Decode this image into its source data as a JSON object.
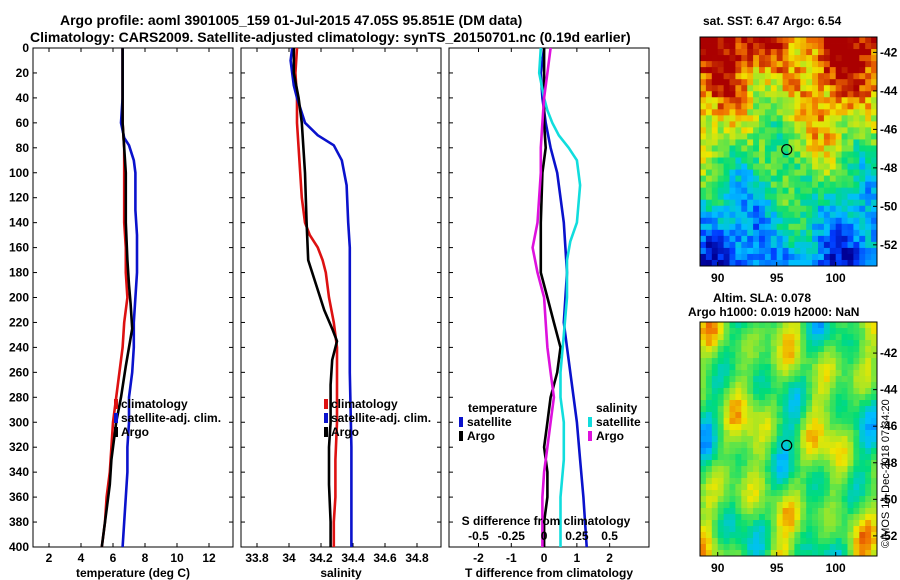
{
  "title": {
    "line1": "Argo profile: aoml 3901005_159 01-Jul-2015 47.05S 95.851E (DM data)",
    "line2": "Climatology: CARS2009. Satellite-adjusted climatology: synTS_20150701.nc (0.19d earlier)"
  },
  "copyright": "©IMOS 14-Dec-2018 07:34:20",
  "colors": {
    "climatology": "#dd1111",
    "satellite": "#0a12cc",
    "argo": "#000000",
    "s_satellite": "#11dddd",
    "s_argo": "#dd11dd"
  },
  "chart_data": [
    {
      "type": "line",
      "name": "temperature",
      "xlabel": "temperature (deg C)",
      "ylabel": "",
      "xlim": [
        1,
        13.5
      ],
      "ylim": [
        400,
        0
      ],
      "xticks": [
        "2",
        "4",
        "6",
        "8",
        "10",
        "12"
      ],
      "xtick_values": [
        2,
        4,
        6,
        8,
        10,
        12
      ],
      "yticks": [
        "0",
        "20",
        "40",
        "60",
        "80",
        "100",
        "120",
        "140",
        "160",
        "180",
        "200",
        "220",
        "240",
        "260",
        "280",
        "300",
        "320",
        "340",
        "360",
        "380",
        "400"
      ],
      "legend": [
        "climatology",
        "satellite-adj. clim.",
        "Argo"
      ],
      "series": [
        {
          "name": "climatology",
          "color": "#dd1111",
          "points": [
            [
              6.6,
              0
            ],
            [
              6.6,
              40
            ],
            [
              6.6,
              60
            ],
            [
              6.7,
              80
            ],
            [
              6.7,
              100
            ],
            [
              6.7,
              140
            ],
            [
              6.8,
              160
            ],
            [
              6.8,
              180
            ],
            [
              6.9,
              200
            ],
            [
              6.7,
              220
            ],
            [
              6.6,
              240
            ],
            [
              6.4,
              260
            ],
            [
              6.2,
              280
            ],
            [
              6.0,
              300
            ],
            [
              5.9,
              320
            ],
            [
              5.8,
              340
            ],
            [
              5.6,
              360
            ],
            [
              5.5,
              380
            ],
            [
              5.3,
              400
            ]
          ]
        },
        {
          "name": "satellite-adj. clim.",
          "color": "#0a12cc",
          "points": [
            [
              6.6,
              0
            ],
            [
              6.6,
              40
            ],
            [
              6.5,
              60
            ],
            [
              6.7,
              72
            ],
            [
              7.0,
              78
            ],
            [
              7.3,
              90
            ],
            [
              7.4,
              100
            ],
            [
              7.4,
              130
            ],
            [
              7.5,
              150
            ],
            [
              7.5,
              180
            ],
            [
              7.4,
              200
            ],
            [
              7.3,
              220
            ],
            [
              7.3,
              240
            ],
            [
              7.2,
              260
            ],
            [
              7.0,
              280
            ],
            [
              7.0,
              300
            ],
            [
              6.9,
              320
            ],
            [
              6.9,
              340
            ],
            [
              6.8,
              360
            ],
            [
              6.7,
              380
            ],
            [
              6.6,
              400
            ]
          ]
        },
        {
          "name": "Argo",
          "color": "#000000",
          "points": [
            [
              6.6,
              0
            ],
            [
              6.6,
              40
            ],
            [
              6.6,
              60
            ],
            [
              6.7,
              80
            ],
            [
              6.8,
              100
            ],
            [
              6.8,
              140
            ],
            [
              6.9,
              170
            ],
            [
              7.0,
              190
            ],
            [
              7.1,
              205
            ],
            [
              7.2,
              225
            ],
            [
              7.0,
              240
            ],
            [
              6.8,
              255
            ],
            [
              6.5,
              280
            ],
            [
              6.2,
              300
            ],
            [
              5.9,
              330
            ],
            [
              5.8,
              350
            ],
            [
              5.6,
              370
            ],
            [
              5.4,
              390
            ],
            [
              5.3,
              400
            ]
          ]
        }
      ]
    },
    {
      "type": "line",
      "name": "salinity",
      "xlabel": "salinity",
      "ylabel": "",
      "xlim": [
        33.7,
        34.95
      ],
      "ylim": [
        400,
        0
      ],
      "xticks": [
        "33.8",
        "34",
        "34.2",
        "34.4",
        "34.6",
        "34.8"
      ],
      "xtick_values": [
        33.8,
        34.0,
        34.2,
        34.4,
        34.6,
        34.8
      ],
      "legend": [
        "climatology",
        "satellite-adj. clim.",
        "Argo"
      ],
      "series": [
        {
          "name": "climatology",
          "color": "#dd1111",
          "points": [
            [
              34.05,
              0
            ],
            [
              34.04,
              20
            ],
            [
              34.05,
              40
            ],
            [
              34.05,
              60
            ],
            [
              34.06,
              80
            ],
            [
              34.07,
              100
            ],
            [
              34.08,
              120
            ],
            [
              34.1,
              140
            ],
            [
              34.13,
              150
            ],
            [
              34.18,
              160
            ],
            [
              34.21,
              170
            ],
            [
              34.23,
              180
            ],
            [
              34.25,
              200
            ],
            [
              34.28,
              220
            ],
            [
              34.3,
              240
            ],
            [
              34.3,
              260
            ],
            [
              34.3,
              280
            ],
            [
              34.3,
              300
            ],
            [
              34.29,
              330
            ],
            [
              34.29,
              360
            ],
            [
              34.28,
              380
            ],
            [
              34.28,
              400
            ]
          ]
        },
        {
          "name": "satellite-adj. clim.",
          "color": "#0a12cc",
          "points": [
            [
              34.02,
              0
            ],
            [
              34.01,
              10
            ],
            [
              34.02,
              20
            ],
            [
              34.03,
              30
            ],
            [
              34.05,
              40
            ],
            [
              34.1,
              60
            ],
            [
              34.18,
              70
            ],
            [
              34.28,
              78
            ],
            [
              34.33,
              90
            ],
            [
              34.36,
              110
            ],
            [
              34.37,
              140
            ],
            [
              34.38,
              160
            ],
            [
              34.38,
              200
            ],
            [
              34.38,
              260
            ],
            [
              34.39,
              320
            ],
            [
              34.39,
              400
            ]
          ]
        },
        {
          "name": "Argo",
          "color": "#000000",
          "points": [
            [
              34.03,
              0
            ],
            [
              34.03,
              20
            ],
            [
              34.06,
              40
            ],
            [
              34.08,
              60
            ],
            [
              34.1,
              100
            ],
            [
              34.11,
              140
            ],
            [
              34.12,
              170
            ],
            [
              34.17,
              190
            ],
            [
              34.22,
              210
            ],
            [
              34.27,
              225
            ],
            [
              34.3,
              235
            ],
            [
              34.27,
              250
            ],
            [
              34.26,
              270
            ],
            [
              34.26,
              300
            ],
            [
              34.25,
              320
            ],
            [
              34.25,
              350
            ],
            [
              34.26,
              380
            ],
            [
              34.26,
              400
            ]
          ]
        }
      ]
    },
    {
      "type": "line",
      "name": "differences",
      "xlabel": "T difference from climatology",
      "xlabel_top": "S difference from climatology",
      "xlim": [
        -2.9,
        3.2
      ],
      "ylim": [
        400,
        0
      ],
      "xticks": [
        "-2",
        "-1",
        "0",
        "1",
        "2"
      ],
      "xtick_values": [
        -2,
        -1,
        0,
        1,
        2
      ],
      "xticks_top": [
        "-0.5",
        "-0.25",
        "0",
        "0.25",
        "0.5"
      ],
      "xtick_top_values": [
        -2,
        -1,
        0,
        1,
        2
      ],
      "legend_temperature": {
        "title": "temperature",
        "items": [
          "satellite",
          "Argo"
        ]
      },
      "legend_salinity": {
        "title": "salinity",
        "items": [
          "satellite",
          "Argo"
        ]
      },
      "series": [
        {
          "name": "T satellite",
          "color": "#0a12cc",
          "points": [
            [
              0,
              0
            ],
            [
              -0.1,
              20
            ],
            [
              -0.05,
              40
            ],
            [
              0.05,
              60
            ],
            [
              0.2,
              80
            ],
            [
              0.4,
              100
            ],
            [
              0.6,
              140
            ],
            [
              0.7,
              180
            ],
            [
              0.6,
              220
            ],
            [
              0.7,
              240
            ],
            [
              0.8,
              260
            ],
            [
              0.9,
              280
            ],
            [
              1.0,
              300
            ],
            [
              1.1,
              330
            ],
            [
              1.2,
              360
            ],
            [
              1.3,
              400
            ]
          ]
        },
        {
          "name": "T Argo",
          "color": "#000000",
          "points": [
            [
              0,
              0
            ],
            [
              0,
              40
            ],
            [
              0,
              60
            ],
            [
              0.05,
              80
            ],
            [
              -0.05,
              100
            ],
            [
              -0.1,
              140
            ],
            [
              -0.1,
              180
            ],
            [
              0.1,
              200
            ],
            [
              0.3,
              220
            ],
            [
              0.5,
              240
            ],
            [
              0.4,
              260
            ],
            [
              0.2,
              280
            ],
            [
              0.1,
              300
            ],
            [
              0.0,
              320
            ],
            [
              0.1,
              340
            ],
            [
              0.1,
              360
            ],
            [
              0.0,
              380
            ],
            [
              0.0,
              400
            ]
          ]
        },
        {
          "name": "S satellite",
          "color": "#11dddd",
          "points": [
            [
              -0.1,
              0
            ],
            [
              -0.15,
              20
            ],
            [
              0.0,
              40
            ],
            [
              0.1,
              50
            ],
            [
              0.25,
              60
            ],
            [
              0.45,
              70
            ],
            [
              0.75,
              80
            ],
            [
              1.0,
              90
            ],
            [
              1.1,
              110
            ],
            [
              1.0,
              140
            ],
            [
              0.8,
              155
            ],
            [
              0.7,
              170
            ],
            [
              0.7,
              200
            ],
            [
              0.6,
              230
            ],
            [
              0.5,
              260
            ],
            [
              0.5,
              280
            ],
            [
              0.6,
              300
            ],
            [
              0.6,
              330
            ],
            [
              0.5,
              360
            ],
            [
              0.5,
              400
            ]
          ]
        },
        {
          "name": "S Argo",
          "color": "#dd11dd",
          "points": [
            [
              0.2,
              0
            ],
            [
              0.1,
              20
            ],
            [
              0.0,
              40
            ],
            [
              -0.05,
              60
            ],
            [
              -0.1,
              80
            ],
            [
              -0.1,
              100
            ],
            [
              -0.2,
              140
            ],
            [
              -0.35,
              160
            ],
            [
              -0.2,
              180
            ],
            [
              0.0,
              200
            ],
            [
              0.05,
              220
            ],
            [
              0.1,
              240
            ],
            [
              0.2,
              260
            ],
            [
              0.3,
              280
            ],
            [
              0.2,
              300
            ],
            [
              0.1,
              320
            ],
            [
              0.0,
              340
            ],
            [
              -0.05,
              360
            ],
            [
              -0.05,
              380
            ],
            [
              -0.05,
              400
            ]
          ]
        }
      ]
    },
    {
      "type": "heatmap",
      "name": "sst_map",
      "title": "sat. SST: 6.47 Argo: 6.54",
      "xticks": [
        "90",
        "95",
        "100"
      ],
      "xtick_values": [
        90,
        95,
        100
      ],
      "yticks": [
        "-42",
        "-44",
        "-46",
        "-48",
        "-50",
        "-52"
      ],
      "ytick_values": [
        -42,
        -44,
        -46,
        -48,
        -50,
        -52
      ],
      "xlim": [
        88.5,
        103.5
      ],
      "ylim": [
        -53.1,
        -41.2
      ],
      "argo_position": [
        95.85,
        -47.05
      ]
    },
    {
      "type": "heatmap",
      "name": "sla_map",
      "title": "Altim. SLA: 0.078",
      "subtitle": "Argo h1000: 0.019 h2000: NaN",
      "xticks": [
        "90",
        "95",
        "100"
      ],
      "xtick_values": [
        90,
        95,
        100
      ],
      "yticks": [
        "-42",
        "-44",
        "-46",
        "-48",
        "-50",
        "-52"
      ],
      "ytick_values": [
        -42,
        -44,
        -46,
        -48,
        -50,
        -52
      ],
      "xlim": [
        88.5,
        103.5
      ],
      "ylim": [
        -53.1,
        -40.3
      ],
      "argo_position": [
        95.85,
        -47.05
      ]
    }
  ]
}
